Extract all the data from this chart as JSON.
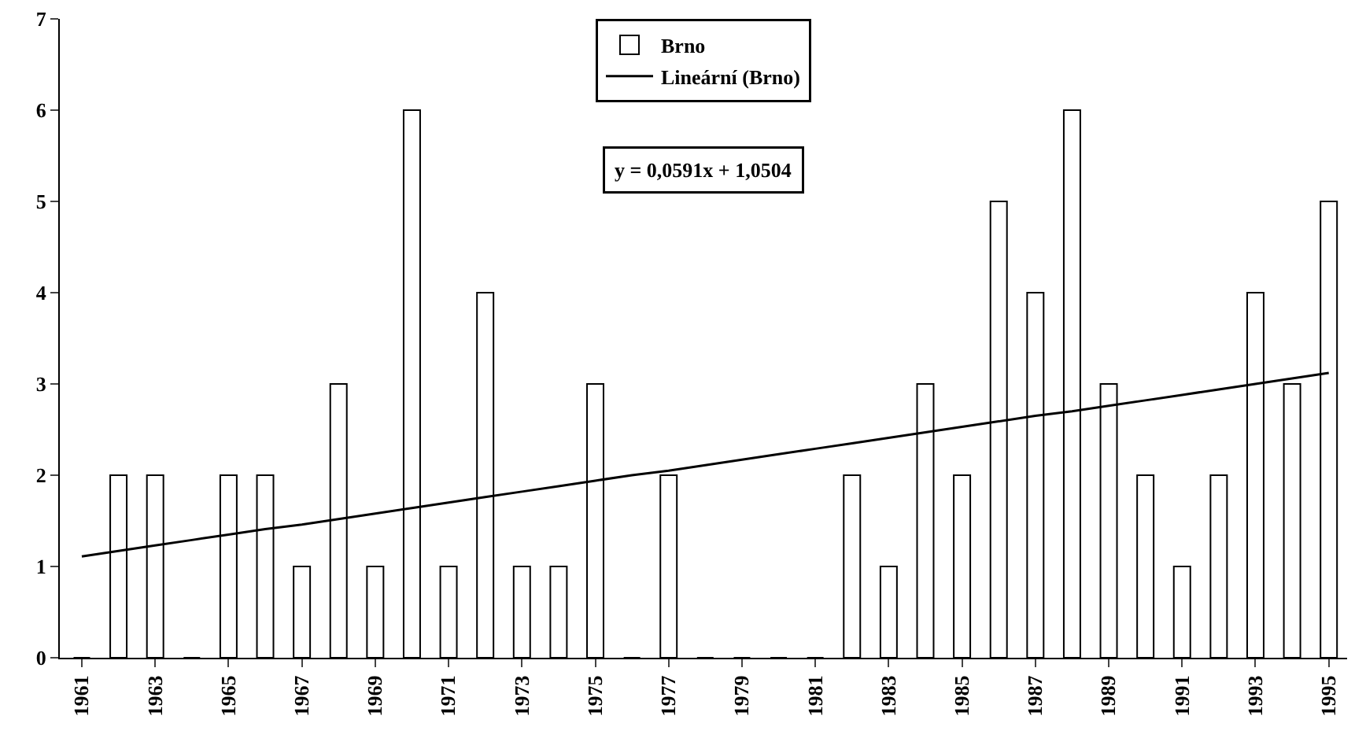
{
  "chart_data": {
    "type": "bar",
    "categories": [
      "1961",
      null,
      "1963",
      null,
      "1965",
      null,
      "1967",
      null,
      "1969",
      null,
      "1971",
      null,
      "1973",
      null,
      "1975",
      null,
      "1977",
      null,
      "1979",
      null,
      "1981",
      null,
      "1983",
      null,
      "1985",
      null,
      "1987",
      null,
      "1989",
      null,
      "1991",
      null,
      "1993",
      null,
      "1995"
    ],
    "series": [
      {
        "name": "Brno",
        "color": "#ffffff",
        "values": [
          0,
          2,
          2,
          0,
          2,
          2,
          1,
          3,
          1,
          6,
          1,
          4,
          1,
          1,
          3,
          0,
          2,
          0,
          0,
          0,
          0,
          2,
          1,
          3,
          2,
          5,
          4,
          6,
          3,
          2,
          1,
          2,
          4,
          3,
          5
        ]
      },
      {
        "name": "Lineární (Brno)",
        "type": "line",
        "color": "#000000",
        "values": [
          1.11,
          1.17,
          1.23,
          1.29,
          1.35,
          1.41,
          1.46,
          1.52,
          1.58,
          1.64,
          1.7,
          1.76,
          1.82,
          1.88,
          1.94,
          2.0,
          2.05,
          2.11,
          2.17,
          2.23,
          2.29,
          2.35,
          2.41,
          2.47,
          2.53,
          2.59,
          2.65,
          2.7,
          2.76,
          2.82,
          2.88,
          2.94,
          3.0,
          3.06,
          3.12
        ]
      }
    ],
    "annotations": [
      "y = 0,0591x + 1,0504"
    ],
    "ylim": [
      0,
      7
    ],
    "yticks": [
      0,
      1,
      2,
      3,
      4,
      5,
      6,
      7
    ],
    "grid": false,
    "legend": "top",
    "marker": "none",
    "line_style": "solid"
  }
}
